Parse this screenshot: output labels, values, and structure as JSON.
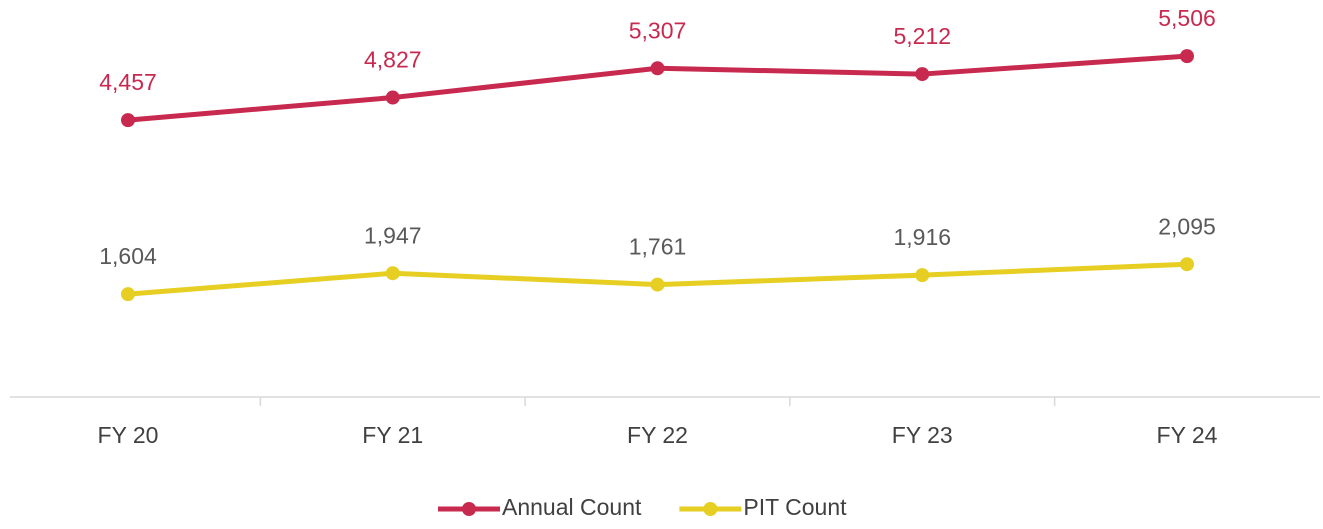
{
  "chart_data": {
    "type": "line",
    "categories": [
      "FY 20",
      "FY 21",
      "FY 22",
      "FY 23",
      "FY 24"
    ],
    "series": [
      {
        "name": "Annual Count",
        "color": "#c8294f",
        "values": [
          4457,
          4827,
          5307,
          5212,
          5506
        ],
        "value_labels": [
          "4,457",
          "4,827",
          "5,307",
          "5,212",
          "5,506"
        ]
      },
      {
        "name": "PIT Count",
        "color": "#e6cf22",
        "values": [
          1604,
          1947,
          1761,
          1916,
          2095
        ],
        "value_labels": [
          "1,604",
          "1,947",
          "1,761",
          "1,916",
          "2,095"
        ]
      }
    ],
    "ylim": [
      0,
      6000
    ],
    "legend": "bottom"
  }
}
